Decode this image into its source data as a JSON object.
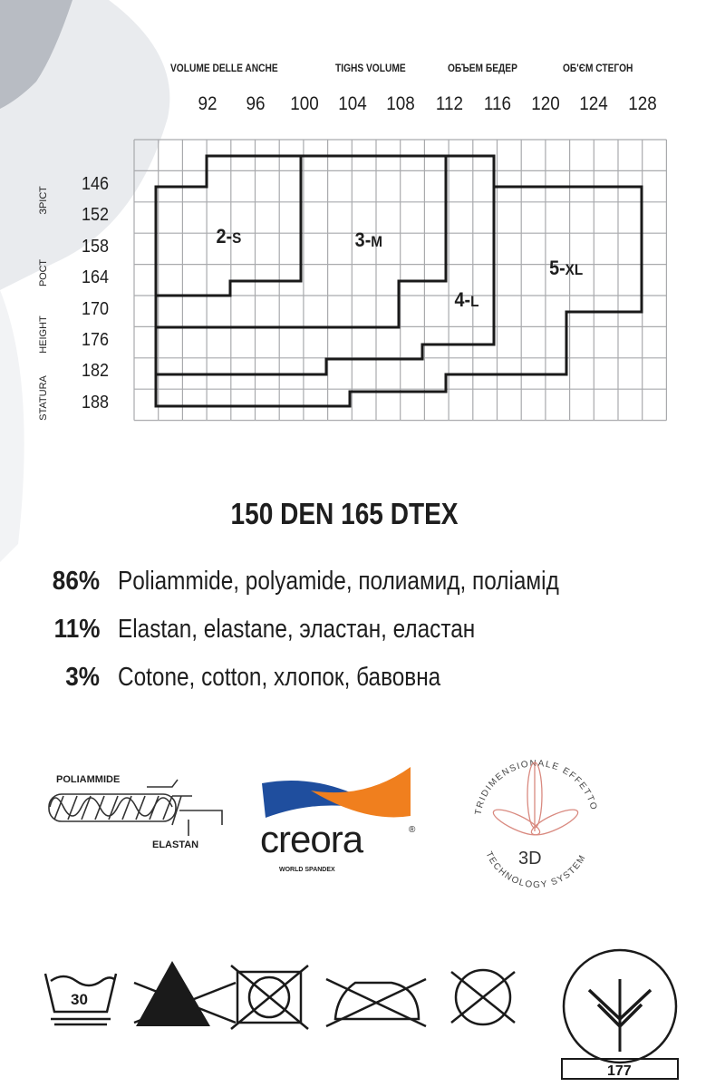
{
  "size_chart": {
    "hip_header": [
      "VOLUME DELLE ANCHE",
      "TIGHS VOLUME",
      "ОБЪЕМ БЕДЕР",
      "ОБ'ЄМ СТЕГОН"
    ],
    "height_header": [
      "STATURA",
      "HEIGHT",
      "РОСТ",
      "ЗРІСТ"
    ],
    "x_ticks": [
      "92",
      "96",
      "100",
      "104",
      "108",
      "112",
      "116",
      "120",
      "124",
      "128"
    ],
    "y_ticks": [
      "146",
      "152",
      "158",
      "164",
      "170",
      "176",
      "182",
      "188"
    ],
    "sizes": [
      {
        "name": "2-",
        "suffix": "S"
      },
      {
        "name": "3-",
        "suffix": "M"
      },
      {
        "name": "4-",
        "suffix": "L"
      },
      {
        "name": "5-",
        "suffix": "XL"
      }
    ]
  },
  "spec": "150 DEN 165 DTEX",
  "composition": [
    {
      "pct": "86%",
      "text": "Poliammide, polyamide, полиамид, поліамід"
    },
    {
      "pct": "11%",
      "text": "Elastan, elastane, эластан, еластан"
    },
    {
      "pct": "3%",
      "text": "Cotone, cotton, хлопок, бавовна"
    }
  ],
  "logos": {
    "fiber": {
      "top": "POLIAMMIDE",
      "bottom": "ELASTAN"
    },
    "creora": {
      "word": "creora",
      "reg": "®",
      "tag": "WORLD SPANDEX",
      "blue": "#1f4e9e",
      "orange": "#f07f1e"
    },
    "effect3d": {
      "ring_top": "TRIDIMENSIONALE   EFFETTO",
      "ring_bottom": "TECHNOLOGY   SYSTEM",
      "center": "3D"
    }
  },
  "care": {
    "wash_temp": "30",
    "icons": [
      "wash-30-icon",
      "no-bleach-icon",
      "no-tumble-dry-icon",
      "no-iron-icon",
      "no-dry-clean-icon"
    ],
    "cert_number": "177"
  }
}
